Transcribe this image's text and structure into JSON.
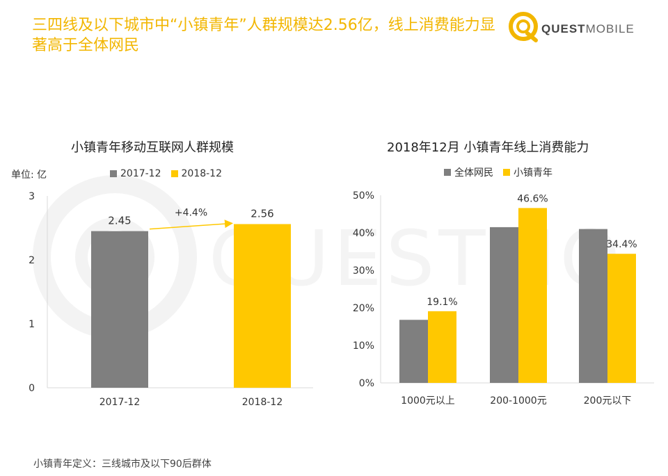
{
  "headline": "三四线及以下城市中“小镇青年”人群规模达2.56亿，线上消费能力显著高于全体网民",
  "logo": {
    "text_bold": "QUEST",
    "text_light": "MOBILE"
  },
  "watermark_text": "QUESTMOBILE",
  "footnote": "小镇青年定义：三线城市及以下90后群体",
  "colors": {
    "gray": "#7f7f7f",
    "yellow": "#ffc800",
    "accent": "#f2b600"
  },
  "chart_data": [
    {
      "type": "bar",
      "title": "小镇青年移动互联网人群规模",
      "unit_label": "单位: 亿",
      "categories": [
        "2017-12",
        "2018-12"
      ],
      "values": [
        2.45,
        2.56
      ],
      "value_labels": [
        "2.45",
        "2.56"
      ],
      "legend": [
        "2017-12",
        "2018-12"
      ],
      "ylim": [
        0,
        3
      ],
      "yticks": [
        "0",
        "1",
        "2",
        "3"
      ],
      "annotation": "+4.4%",
      "grid": false
    },
    {
      "type": "bar",
      "title": "2018年12月 小镇青年线上消费能力",
      "categories": [
        "1000元以上",
        "200-1000元",
        "200元以下"
      ],
      "series": [
        {
          "name": "全体网民",
          "values": [
            16.8,
            41.5,
            41.0
          ]
        },
        {
          "name": "小镇青年",
          "values": [
            19.1,
            46.6,
            34.4
          ],
          "labels": [
            "19.1%",
            "46.6%",
            "34.4%"
          ]
        }
      ],
      "ylim": [
        0,
        50
      ],
      "yticks": [
        "0%",
        "10%",
        "20%",
        "30%",
        "40%",
        "50%"
      ],
      "grid": false
    }
  ]
}
